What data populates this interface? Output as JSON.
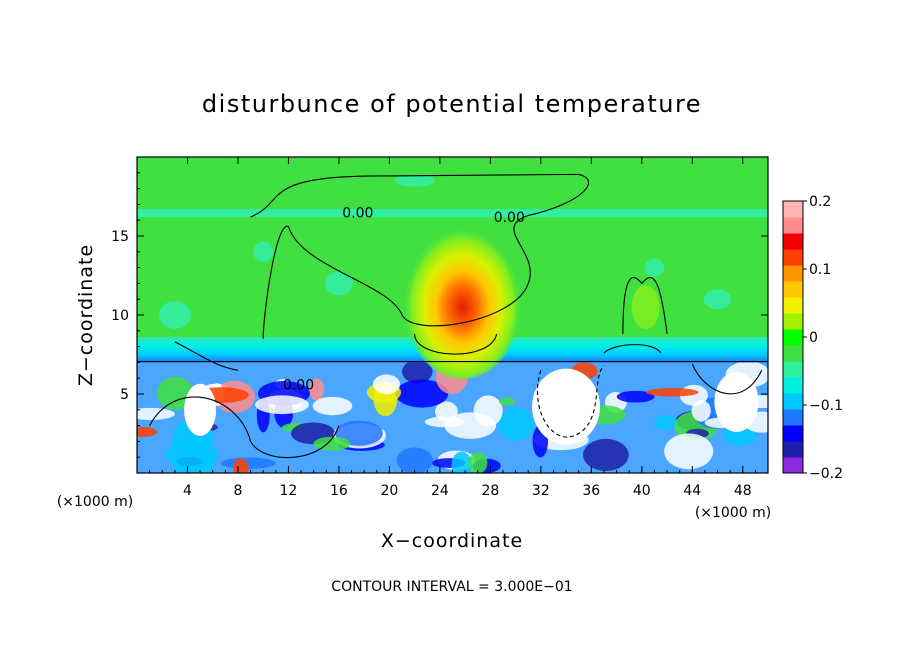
{
  "chart_data": {
    "type": "heatmap",
    "title": "disturbunce of potential temperature",
    "xlabel": "X−coordinate",
    "ylabel": "Z−coordinate",
    "x_unit_left": "(×1000 m)",
    "x_unit_right": "(×1000 m)",
    "footer": "CONTOUR INTERVAL = 3.000E−01",
    "xlim": [
      0,
      50
    ],
    "ylim": [
      0,
      20
    ],
    "x_ticks": [
      4,
      8,
      12,
      16,
      20,
      24,
      28,
      32,
      36,
      40,
      44,
      48
    ],
    "x_tick_labels": [
      "4",
      "8",
      "12",
      "16",
      "20",
      "24",
      "28",
      "32",
      "36",
      "40",
      "44",
      "48"
    ],
    "y_ticks": [
      5,
      10,
      15
    ],
    "y_tick_labels": [
      "5",
      "10",
      "15"
    ],
    "contour_labels": [
      {
        "text": "0.00",
        "x": 17.5,
        "z": 16.5
      },
      {
        "text": "0.00",
        "x": 29.5,
        "z": 16.2
      },
      {
        "text": "0.00",
        "x": 12.8,
        "z": 5.6
      }
    ],
    "colorbar": {
      "min": -0.2,
      "max": 0.2,
      "tick_values": [
        0.2,
        0.1,
        0,
        -0.1,
        -0.2
      ],
      "tick_labels": [
        "0.2",
        "0.1",
        "0",
        "−0.1",
        "−0.2"
      ],
      "colors": [
        "#8a2be2",
        "#1e1ea8",
        "#0000ff",
        "#1e78ff",
        "#00c8ff",
        "#00f0e0",
        "#30f0a0",
        "#40e040",
        "#00ff00",
        "#a0f000",
        "#f0f000",
        "#ffc800",
        "#ff9600",
        "#ff4000",
        "#f00000",
        "#ff8c8c",
        "#ffb4b4"
      ]
    },
    "features": {
      "field_background": "#40e040",
      "stable_layer_z": [
        7.0,
        8.6
      ],
      "stable_layer_color": "#00e8e0",
      "warm_anomaly": {
        "x": 25.8,
        "z": 9.8,
        "peak": 0.12
      },
      "upper_band_z": 16.4,
      "turbulent_layer_top_z": 7.0
    }
  }
}
